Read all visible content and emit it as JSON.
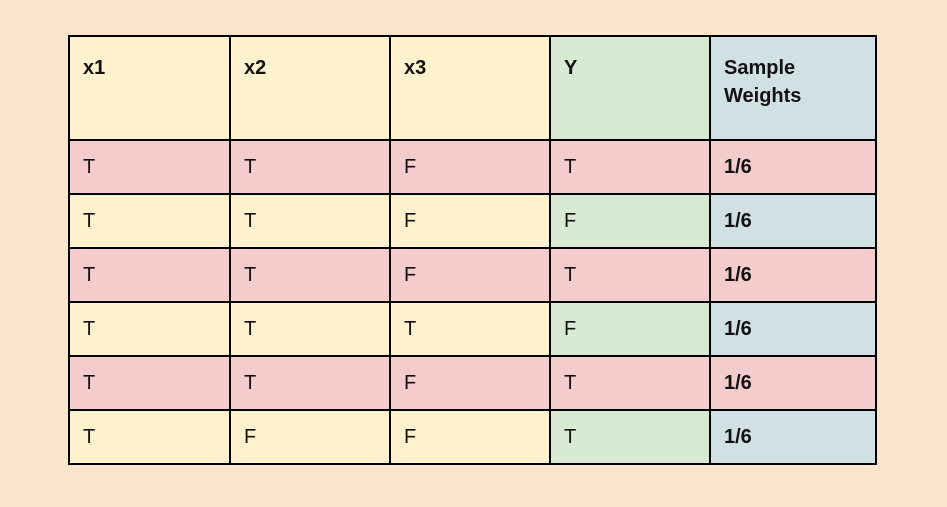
{
  "colors": {
    "background": "#fce5cd",
    "feature": "#fff2cc",
    "label": "#d9ead3",
    "weight": "#d0e0e3",
    "highlight": "#f4cccc"
  },
  "headers": [
    "x1",
    "x2",
    "x3",
    "Y",
    "Sample Weights"
  ],
  "rows": [
    {
      "highlighted": true,
      "cells": [
        "T",
        "T",
        "F",
        "T",
        "1/6"
      ]
    },
    {
      "highlighted": false,
      "cells": [
        "T",
        "T",
        "F",
        "F",
        "1/6"
      ]
    },
    {
      "highlighted": true,
      "cells": [
        "T",
        "T",
        "F",
        "T",
        "1/6"
      ]
    },
    {
      "highlighted": false,
      "cells": [
        "T",
        "T",
        "T",
        "F",
        "1/6"
      ]
    },
    {
      "highlighted": true,
      "cells": [
        "T",
        "T",
        "F",
        "T",
        "1/6"
      ]
    },
    {
      "highlighted": false,
      "cells": [
        "T",
        "F",
        "F",
        "T",
        "1/6"
      ]
    }
  ]
}
